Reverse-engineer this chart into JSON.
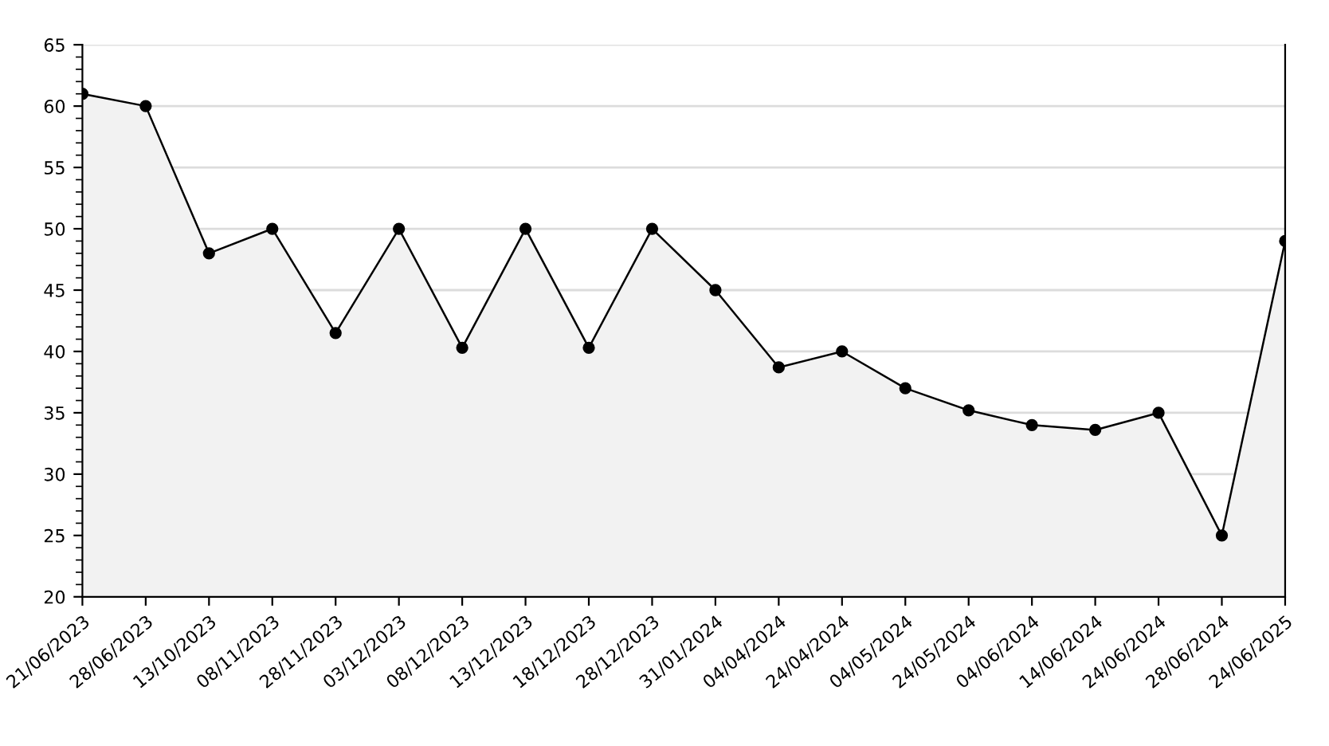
{
  "chart_data": {
    "type": "area",
    "categories": [
      "21/06/2023",
      "28/06/2023",
      "13/10/2023",
      "08/11/2023",
      "28/11/2023",
      "03/12/2023",
      "08/12/2023",
      "13/12/2023",
      "18/12/2023",
      "28/12/2023",
      "31/01/2024",
      "04/04/2024",
      "24/04/2024",
      "04/05/2024",
      "24/05/2024",
      "04/06/2024",
      "14/06/2024",
      "24/06/2024",
      "28/06/2024",
      "24/06/2025"
    ],
    "series": [
      {
        "color": "#000000",
        "values": [
          61,
          60,
          48,
          50,
          41.5,
          50,
          40.3,
          50,
          40.3,
          50,
          45,
          38.7,
          40,
          37,
          35.2,
          34,
          33.6,
          35,
          25,
          49
        ]
      }
    ],
    "ylim": [
      20,
      65
    ],
    "yticks": [
      20,
      25,
      30,
      35,
      40,
      45,
      50,
      55,
      60,
      65
    ],
    "grid": "y",
    "marker": "circle",
    "line_style": "solid"
  }
}
